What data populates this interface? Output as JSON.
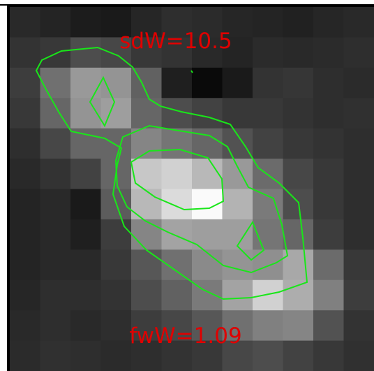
{
  "labels": {
    "top": "sdW=10.5",
    "bottom": "fwW=1.09"
  },
  "colors": {
    "contour": "#19e619",
    "label": "#e00000",
    "border": "#ffffff",
    "background": "#262626"
  },
  "image": {
    "rows": 12,
    "cols": 12,
    "pixels": [
      [
        0.16,
        0.14,
        0.11,
        0.1,
        0.15,
        0.18,
        0.17,
        0.15,
        0.14,
        0.13,
        0.15,
        0.16
      ],
      [
        0.2,
        0.22,
        0.3,
        0.28,
        0.22,
        0.2,
        0.16,
        0.14,
        0.17,
        0.16,
        0.17,
        0.18
      ],
      [
        0.24,
        0.44,
        0.6,
        0.58,
        0.38,
        0.12,
        0.04,
        0.1,
        0.2,
        0.21,
        0.18,
        0.17
      ],
      [
        0.22,
        0.4,
        0.58,
        0.62,
        0.4,
        0.3,
        0.26,
        0.22,
        0.22,
        0.2,
        0.18,
        0.19
      ],
      [
        0.18,
        0.28,
        0.4,
        0.4,
        0.52,
        0.46,
        0.4,
        0.32,
        0.26,
        0.22,
        0.2,
        0.18
      ],
      [
        0.16,
        0.2,
        0.26,
        0.4,
        0.78,
        0.82,
        0.72,
        0.6,
        0.42,
        0.28,
        0.22,
        0.18
      ],
      [
        0.14,
        0.16,
        0.1,
        0.36,
        0.72,
        0.86,
        0.98,
        0.7,
        0.48,
        0.3,
        0.22,
        0.18
      ],
      [
        0.14,
        0.16,
        0.12,
        0.24,
        0.52,
        0.64,
        0.62,
        0.62,
        0.46,
        0.4,
        0.24,
        0.18
      ],
      [
        0.14,
        0.16,
        0.16,
        0.22,
        0.34,
        0.44,
        0.54,
        0.58,
        0.56,
        0.66,
        0.42,
        0.22
      ],
      [
        0.15,
        0.18,
        0.18,
        0.2,
        0.3,
        0.38,
        0.48,
        0.64,
        0.82,
        0.68,
        0.5,
        0.24
      ],
      [
        0.16,
        0.18,
        0.16,
        0.18,
        0.24,
        0.28,
        0.34,
        0.44,
        0.5,
        0.52,
        0.32,
        0.2
      ],
      [
        0.17,
        0.19,
        0.18,
        0.17,
        0.18,
        0.2,
        0.22,
        0.28,
        0.3,
        0.26,
        0.22,
        0.19
      ]
    ]
  }
}
